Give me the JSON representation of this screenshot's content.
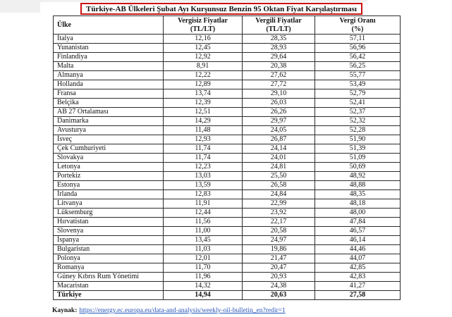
{
  "page": {
    "title": "Türkiye-AB Ülkeleri Şubat Ayı Kurşunsuz Benzin 95 Oktan Fiyat Karşılaştırması",
    "source_label": "Kaynak:",
    "source_url": "https://energy.ec.europa.eu/data-and-analysis/weekly-oil-bulletin_en?redir=1"
  },
  "colors": {
    "title_box_red": "#cc1111",
    "link_blue": "#2855b8",
    "table_border": "#2b2b2b",
    "page_edge_gray": "#f0f0f0",
    "text": "#111111"
  },
  "table": {
    "columns": [
      {
        "line1": "Ülke",
        "line2": ""
      },
      {
        "line1": "Vergisiz Fiyatlar",
        "line2": "(TL/LT)"
      },
      {
        "line1": "Vergili Fiyatlar",
        "line2": "(TL/LT)"
      },
      {
        "line1": "Vergi Oranı",
        "line2": "(%)"
      }
    ],
    "rows": [
      {
        "country": "İtalya",
        "untaxed": "12,16",
        "taxed": "28,35",
        "rate": "57,11"
      },
      {
        "country": "Yunanistan",
        "untaxed": "12,45",
        "taxed": "28,93",
        "rate": "56,96"
      },
      {
        "country": "Finlandiya",
        "untaxed": "12,92",
        "taxed": "29,64",
        "rate": "56,42"
      },
      {
        "country": "Malta",
        "untaxed": "8,91",
        "taxed": "20,38",
        "rate": "56,25"
      },
      {
        "country": "Almanya",
        "untaxed": "12,22",
        "taxed": "27,62",
        "rate": "55,77"
      },
      {
        "country": "Hollanda",
        "untaxed": "12,89",
        "taxed": "27,72",
        "rate": "53,49"
      },
      {
        "country": "Fransa",
        "untaxed": "13,74",
        "taxed": "29,10",
        "rate": "52,79"
      },
      {
        "country": "Belçika",
        "untaxed": "12,39",
        "taxed": "26,03",
        "rate": "52,41"
      },
      {
        "country": "AB 27 Ortalaması",
        "untaxed": "12,51",
        "taxed": "26,26",
        "rate": "52,37"
      },
      {
        "country": "Danimarka",
        "untaxed": "14,29",
        "taxed": "29,97",
        "rate": "52,32"
      },
      {
        "country": "Avusturya",
        "untaxed": "11,48",
        "taxed": "24,05",
        "rate": "52,28"
      },
      {
        "country": "İsveç",
        "untaxed": "12,93",
        "taxed": "26,87",
        "rate": "51,90"
      },
      {
        "country": "Çek Cumhuriyeti",
        "untaxed": "11,74",
        "taxed": "24,14",
        "rate": "51,39"
      },
      {
        "country": "Slovakya",
        "untaxed": "11,74",
        "taxed": "24,01",
        "rate": "51,09"
      },
      {
        "country": "Letonya",
        "untaxed": "12,23",
        "taxed": "24,81",
        "rate": "50,69"
      },
      {
        "country": "Portekiz",
        "untaxed": "13,03",
        "taxed": "25,50",
        "rate": "48,92"
      },
      {
        "country": "Estonya",
        "untaxed": "13,59",
        "taxed": "26,58",
        "rate": "48,88"
      },
      {
        "country": "İrlanda",
        "untaxed": "12,83",
        "taxed": "24,84",
        "rate": "48,35"
      },
      {
        "country": "Litvanya",
        "untaxed": "11,91",
        "taxed": "22,99",
        "rate": "48,18"
      },
      {
        "country": "Lüksemburg",
        "untaxed": "12,44",
        "taxed": "23,92",
        "rate": "48,00"
      },
      {
        "country": "Hırvatistan",
        "untaxed": "11,56",
        "taxed": "22,17",
        "rate": "47,84"
      },
      {
        "country": "Slovenya",
        "untaxed": "11,00",
        "taxed": "20,58",
        "rate": "46,57"
      },
      {
        "country": "İspanya",
        "untaxed": "13,45",
        "taxed": "24,97",
        "rate": "46,14"
      },
      {
        "country": "Bulgaristan",
        "untaxed": "11,03",
        "taxed": "19,86",
        "rate": "44,46"
      },
      {
        "country": "Polonya",
        "untaxed": "12,01",
        "taxed": "21,47",
        "rate": "44,07"
      },
      {
        "country": "Romanya",
        "untaxed": "11,70",
        "taxed": "20,47",
        "rate": "42,85"
      },
      {
        "country": "Güney Kıbrıs Rum Yönetimi",
        "untaxed": "11,96",
        "taxed": "20,93",
        "rate": "42,83"
      },
      {
        "country": "Macaristan",
        "untaxed": "14,32",
        "taxed": "24,38",
        "rate": "41,27"
      },
      {
        "country": "Türkiye",
        "untaxed": "14,94",
        "taxed": "20,63",
        "rate": "27,58"
      }
    ]
  }
}
